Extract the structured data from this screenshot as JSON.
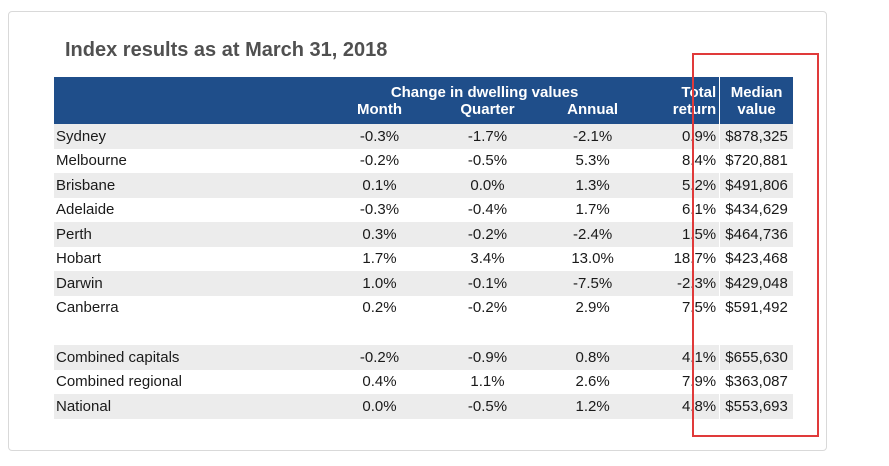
{
  "title": "Index results as at March 31, 2018",
  "header": {
    "group_label": "Change in dwelling values",
    "month": "Month",
    "quarter": "Quarter",
    "annual": "Annual",
    "total_line1": "Total",
    "total_line2": "return",
    "median_line1": "Median",
    "median_line2": "value"
  },
  "rows": [
    {
      "city": "Sydney",
      "month": "-0.3%",
      "quarter": "-1.7%",
      "annual": "-2.1%",
      "total": "0.9%",
      "median": "$878,325"
    },
    {
      "city": "Melbourne",
      "month": "-0.2%",
      "quarter": "-0.5%",
      "annual": "5.3%",
      "total": "8.4%",
      "median": "$720,881"
    },
    {
      "city": "Brisbane",
      "month": "0.1%",
      "quarter": "0.0%",
      "annual": "1.3%",
      "total": "5.2%",
      "median": "$491,806"
    },
    {
      "city": "Adelaide",
      "month": "-0.3%",
      "quarter": "-0.4%",
      "annual": "1.7%",
      "total": "6.1%",
      "median": "$434,629"
    },
    {
      "city": "Perth",
      "month": "0.3%",
      "quarter": "-0.2%",
      "annual": "-2.4%",
      "total": "1.5%",
      "median": "$464,736"
    },
    {
      "city": "Hobart",
      "month": "1.7%",
      "quarter": "3.4%",
      "annual": "13.0%",
      "total": "18.7%",
      "median": "$423,468"
    },
    {
      "city": "Darwin",
      "month": "1.0%",
      "quarter": "-0.1%",
      "annual": "-7.5%",
      "total": "-2.3%",
      "median": "$429,048"
    },
    {
      "city": "Canberra",
      "month": "0.2%",
      "quarter": "-0.2%",
      "annual": "2.9%",
      "total": "7.5%",
      "median": "$591,492"
    }
  ],
  "summary_rows": [
    {
      "city": "Combined capitals",
      "month": "-0.2%",
      "quarter": "-0.9%",
      "annual": "0.8%",
      "total": "4.1%",
      "median": "$655,630"
    },
    {
      "city": "Combined regional",
      "month": "0.4%",
      "quarter": "1.1%",
      "annual": "2.6%",
      "total": "7.9%",
      "median": "$363,087"
    },
    {
      "city": "National",
      "month": "0.0%",
      "quarter": "-0.5%",
      "annual": "1.2%",
      "total": "4.8%",
      "median": "$553,693"
    }
  ],
  "colors": {
    "header_bg": "#1f4e8a",
    "header_text": "#ffffff",
    "alt_row_bg": "#ececec",
    "highlight_border": "#e03a3a",
    "title_text": "#505050"
  }
}
